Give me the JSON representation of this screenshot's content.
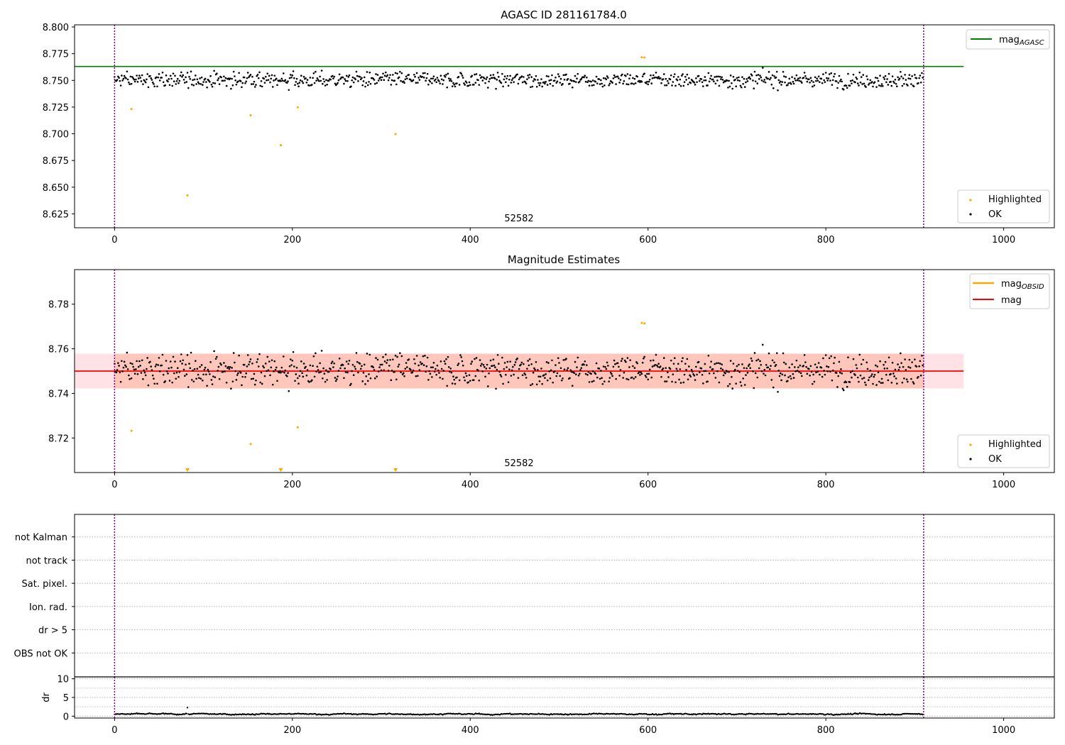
{
  "chart_data": [
    {
      "type": "scatter",
      "title": "AGASC ID 281161784.0",
      "xlabel": "",
      "ylabel": "",
      "xlim": [
        -45,
        1057
      ],
      "ylim": [
        8.612,
        8.802
      ],
      "xticks": [
        0,
        200,
        400,
        600,
        800,
        1000
      ],
      "xtick_labels": [
        "0",
        "200",
        "400",
        "600",
        "800",
        "1000"
      ],
      "yticks": [
        8.625,
        8.65,
        8.675,
        8.7,
        8.725,
        8.75,
        8.775,
        8.8
      ],
      "ytick_labels": [
        "8.625",
        "8.650",
        "8.675",
        "8.700",
        "8.725",
        "8.750",
        "8.775",
        "8.800"
      ],
      "vlines": [
        0,
        910
      ],
      "annotation": "52582",
      "annotation_x": 455,
      "hline": {
        "name": "mag_AGASC",
        "y": 8.763,
        "x_range": [
          -45,
          955
        ],
        "color": "#008000"
      },
      "legend_lines": [
        {
          "label": "mag",
          "sub": "AGASC",
          "color": "#008000"
        }
      ],
      "legend_points": [
        {
          "label": "Highlighted",
          "color": "#ffa500"
        },
        {
          "label": "OK",
          "color": "#000000"
        }
      ],
      "ok_points": {
        "name": "OK",
        "n": 910,
        "base": 8.7505,
        "noise": 0.0085
      },
      "highlighted": {
        "name": "Highlighted",
        "x": [
          19,
          82,
          153,
          187,
          206,
          316,
          593,
          596
        ],
        "y": [
          8.7232,
          8.6423,
          8.7173,
          8.6893,
          8.7248,
          8.6997,
          8.7716,
          8.7714
        ]
      }
    },
    {
      "type": "scatter",
      "title": "Magnitude Estimates",
      "xlabel": "",
      "ylabel": "",
      "xlim": [
        -45,
        1057
      ],
      "ylim": [
        8.7045,
        8.7955
      ],
      "xticks": [
        0,
        200,
        400,
        600,
        800,
        1000
      ],
      "xtick_labels": [
        "0",
        "200",
        "400",
        "600",
        "800",
        "1000"
      ],
      "yticks": [
        8.72,
        8.74,
        8.76,
        8.78
      ],
      "ytick_labels": [
        "8.72",
        "8.74",
        "8.76",
        "8.78"
      ],
      "vlines": [
        0,
        910
      ],
      "annotation": "52582",
      "annotation_x": 455,
      "mag_line": {
        "name": "mag",
        "y": 8.75,
        "color": "#ff0000"
      },
      "mag_band": {
        "y_low": 8.7422,
        "y_high": 8.7578,
        "x_range": [
          -45,
          955
        ],
        "color": "#ffb6c1"
      },
      "obsid_band": {
        "y_low": 8.7422,
        "y_high": 8.7578,
        "x_range": [
          0,
          910
        ],
        "color": "#ffa07a"
      },
      "legend_lines": [
        {
          "label": "mag",
          "sub": "OBSID",
          "color": "#ffa500"
        },
        {
          "label": "mag",
          "sub": "",
          "color": "#ff0000"
        }
      ],
      "legend_points": [
        {
          "label": "Highlighted",
          "color": "#ffa500"
        },
        {
          "label": "OK",
          "color": "#000000"
        }
      ],
      "highlighted": {
        "name": "Highlighted",
        "x": [
          19,
          153,
          206,
          593,
          596
        ],
        "y": [
          8.7232,
          8.7173,
          8.7248,
          8.7716,
          8.7714
        ]
      },
      "below_axis_markers": {
        "x": [
          82,
          187,
          316
        ],
        "color": "#ffa500"
      }
    },
    {
      "type": "scatter",
      "title": "",
      "xlim": [
        -45,
        1057
      ],
      "categories": [
        "not Kalman",
        "not track",
        "Sat. pixel.",
        "Ion. rad.",
        "dr > 5",
        "OBS not OK"
      ],
      "vlines": [
        0,
        910
      ],
      "flag_points": []
    },
    {
      "type": "scatter",
      "title": "",
      "xlabel": "",
      "ylabel": "dr",
      "xlim": [
        -45,
        1057
      ],
      "ylim": [
        -0.5,
        10.5
      ],
      "xticks": [
        0,
        200,
        400,
        600,
        800,
        1000
      ],
      "xtick_labels": [
        "0",
        "200",
        "400",
        "600",
        "800",
        "1000"
      ],
      "yticks": [
        0,
        5,
        10
      ],
      "ytick_labels": [
        "0",
        "5",
        "10"
      ],
      "vlines": [
        0,
        910
      ],
      "dr_points": {
        "n": 910,
        "base": 0.55,
        "noise": 0.25,
        "spike_x": 82,
        "spike_y": 2.3
      }
    }
  ]
}
